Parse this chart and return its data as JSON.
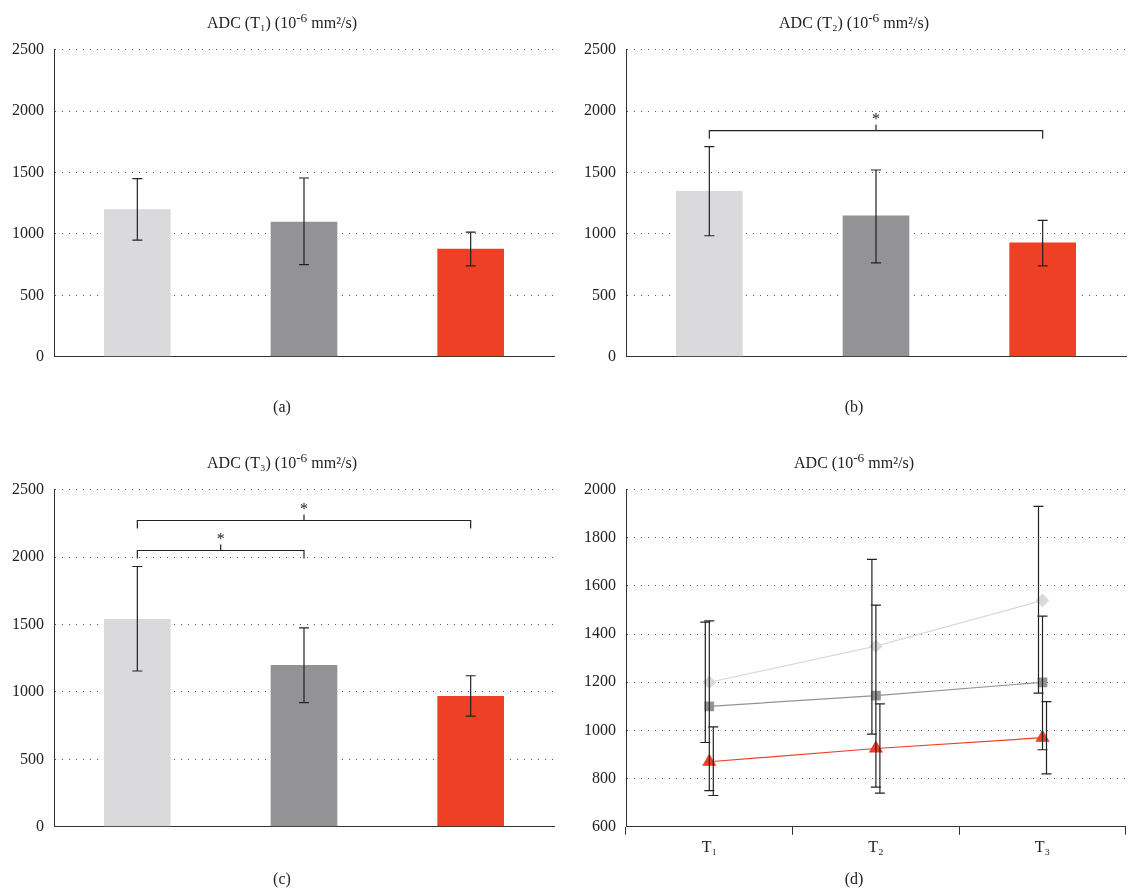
{
  "chart_data": [
    {
      "type": "bar",
      "title": "ADC (T₁) (10$^{-6}$ mm²/s)",
      "categories": [
        null,
        null,
        null
      ],
      "values": [
        1200,
        1100,
        880
      ],
      "colors": [
        "#dadadc",
        "#939396",
        "#ee4025"
      ],
      "errors": [
        [
          950,
          1450
        ],
        [
          750,
          1455
        ],
        [
          740,
          1015
        ]
      ],
      "ylim": [
        0,
        2500
      ],
      "yticks": [
        0,
        500,
        1000,
        1500,
        2000,
        2500
      ],
      "grid": "y",
      "legend": false,
      "annotations": [
        "(a)"
      ]
    },
    {
      "type": "bar",
      "title": "ADC (T₂) (10$^{-6}$ mm²/s)",
      "categories": [
        null,
        null,
        null
      ],
      "values": [
        1350,
        1150,
        930
      ],
      "colors": [
        "#dadadc",
        "#939396",
        "#ee4025"
      ],
      "errors": [
        [
          985,
          1710
        ],
        [
          765,
          1520
        ],
        [
          740,
          1110
        ]
      ],
      "ylim": [
        0,
        2500
      ],
      "yticks": [
        0,
        500,
        1000,
        1500,
        2000,
        2500
      ],
      "grid": "y",
      "legend": false,
      "annotations": [
        "(b)",
        "*"
      ]
    },
    {
      "type": "bar",
      "title": "ADC (T₃) (10$^{-6}$ mm²/s)",
      "categories": [
        null,
        null,
        null
      ],
      "values": [
        1540,
        1200,
        970
      ],
      "colors": [
        "#dadadc",
        "#939396",
        "#ee4025"
      ],
      "errors": [
        [
          1155,
          1930
        ],
        [
          920,
          1475
        ],
        [
          820,
          1120
        ]
      ],
      "ylim": [
        0,
        2500
      ],
      "yticks": [
        0,
        500,
        1000,
        1500,
        2000,
        2500
      ],
      "grid": "y",
      "legend": false,
      "annotations": [
        "(c)",
        "*",
        "*"
      ]
    },
    {
      "type": "line",
      "title": "ADC (10$^{-6}$ mm²/s)",
      "categories": [
        "T₁",
        "T₂",
        "T₃"
      ],
      "series": [
        {
          "color": "#d9d9db",
          "marker": "diamond",
          "values": [
            1200,
            1350,
            1540
          ],
          "errors": [
            [
              950,
              1450
            ],
            [
              985,
              1710
            ],
            [
              1155,
              1930
            ]
          ]
        },
        {
          "color": "#939396",
          "marker": "square",
          "values": [
            1100,
            1145,
            1200
          ],
          "errors": [
            [
              750,
              1455
            ],
            [
              765,
              1520
            ],
            [
              920,
              1475
            ]
          ]
        },
        {
          "color": "#ee4025",
          "marker": "triangle",
          "values": [
            870,
            925,
            970
          ],
          "errors": [
            [
              730,
              1015
            ],
            [
              740,
              1110
            ],
            [
              820,
              1120
            ]
          ]
        }
      ],
      "ylim": [
        600,
        2000
      ],
      "yticks": [
        600,
        800,
        1000,
        1200,
        1400,
        1600,
        1800,
        2000
      ],
      "grid": "y",
      "legend": false,
      "annotations": [
        "(d)"
      ]
    }
  ]
}
